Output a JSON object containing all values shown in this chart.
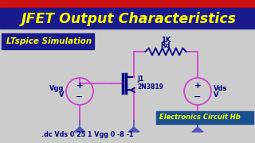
{
  "title": "JFET Output Characteristics",
  "title_color": "#FFFF00",
  "title_bg": "#1a1a8c",
  "subtitle": "LTspice Simulation",
  "subtitle_color": "#FFFF00",
  "subtitle_bg": "#1a1a8c",
  "watermark": "Electronics Circuit Hb",
  "watermark_color": "#FFFF00",
  "watermark_bg": "#1a5090",
  "bg_color": "#cccccc",
  "window_bar_color": "#cc1111",
  "spice_cmd": ".dc Vds 0 25 1 Vgg 0 -8 -1",
  "spice_cmd_color": "#000080",
  "wire_color": "#cc44cc",
  "component_color": "#000080",
  "ground_color": "#5555bb",
  "jfet_label": "J1",
  "jfet_model": "2N3819",
  "res_label_top": "1K",
  "res_label_bot": "Rd",
  "vds_label": "Vds",
  "vds_label2": "V",
  "vgg_label": "Vgg",
  "vgg_label2": "V"
}
